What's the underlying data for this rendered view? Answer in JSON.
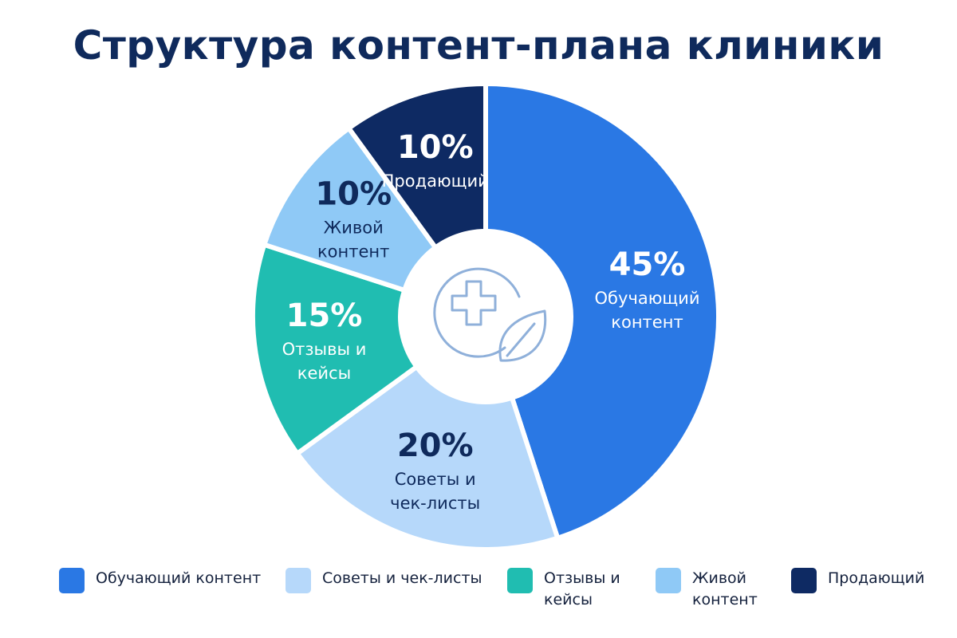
{
  "title": "Структура контент-плана клиники",
  "colors": {
    "title": "#0f2a5c",
    "label_dark": "#0f2a5c",
    "label_light": "#ffffff",
    "icon": "#8fb0da",
    "separator": "#ffffff"
  },
  "center_icon": "medical-cross-leaf-icon",
  "chart_data": {
    "type": "pie",
    "variant": "donut",
    "unit": "%",
    "title": "Структура контент-плана клиники",
    "legend_position": "bottom",
    "slices": [
      {
        "value_label": "45%",
        "value": 45,
        "label_lines": [
          "Обучающий",
          "контент"
        ],
        "legend_lines": [
          "Обучающий контент"
        ],
        "color": "#2a78e4",
        "text_color": "#ffffff"
      },
      {
        "value_label": "20%",
        "value": 20,
        "label_lines": [
          "Советы и",
          "чек-листы"
        ],
        "legend_lines": [
          "Советы и чек-листы"
        ],
        "color": "#b6d8fa",
        "text_color": "#0f2a5c"
      },
      {
        "value_label": "15%",
        "value": 15,
        "label_lines": [
          "Отзывы и",
          "кейсы"
        ],
        "legend_lines": [
          "Отзывы и",
          "кейсы"
        ],
        "color": "#20bdb1",
        "text_color": "#ffffff"
      },
      {
        "value_label": "10%",
        "value": 10,
        "label_lines": [
          "Живой",
          "контент"
        ],
        "legend_lines": [
          "Живой",
          "контент"
        ],
        "color": "#8fc9f6",
        "text_color": "#0f2a5c"
      },
      {
        "value_label": "10%",
        "value": 10,
        "label_lines": [
          "Продающий"
        ],
        "legend_lines": [
          "Продающий"
        ],
        "color": "#0e2a63",
        "text_color": "#ffffff"
      }
    ]
  }
}
